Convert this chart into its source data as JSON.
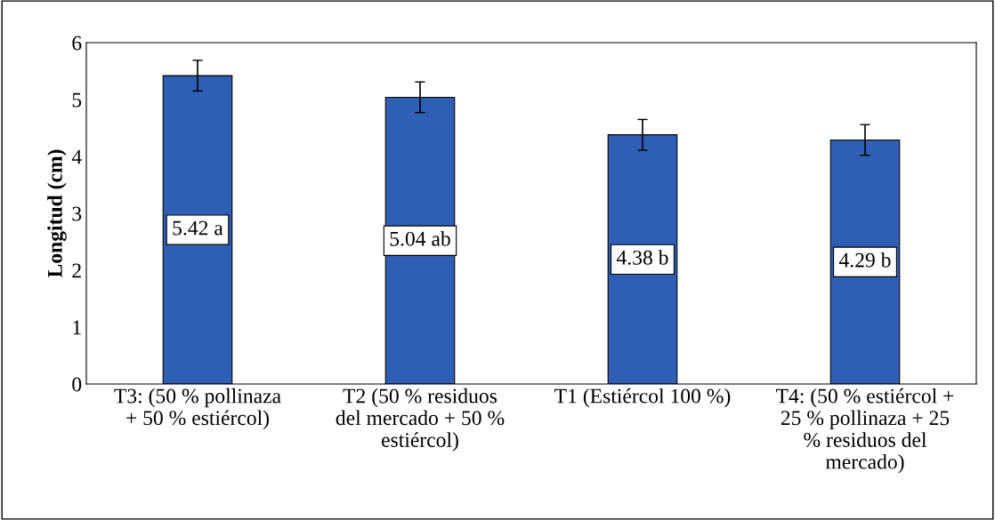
{
  "chart_data": {
    "type": "bar",
    "ylabel": "Longitud (cm)",
    "categories": [
      "T3: (50 % pollinaza\n+ 50 % estiércol)",
      "T2 (50 % residuos\ndel mercado + 50 %\nestiércol)",
      "T1 (Estiércol 100 %)",
      "T4: (50 % estiércol +\n25 % pollinaza + 25\n% residuos del\nmercado)"
    ],
    "values": [
      5.42,
      5.04,
      4.38,
      4.29
    ],
    "errors": [
      0.27,
      0.27,
      0.27,
      0.27
    ],
    "value_labels": [
      "5.42 a",
      "5.04 ab",
      "4.38 b",
      "4.29 b"
    ],
    "color": "#2f5fb5",
    "ylim": [
      0,
      6
    ],
    "yticks": [
      0,
      1,
      2,
      3,
      4,
      5,
      6
    ],
    "grid": false
  }
}
